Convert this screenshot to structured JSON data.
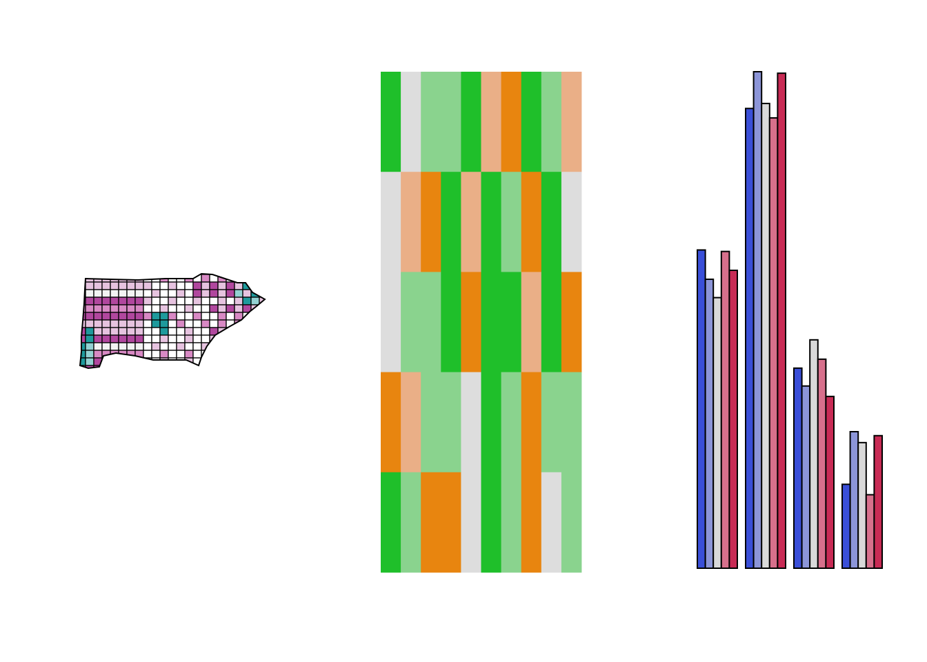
{
  "chart_data": [
    {
      "type": "map",
      "title": "",
      "region_fill_classes": [
        "#ffffff",
        "#f3f3f3",
        "#e6c3df",
        "#d889c4",
        "#b1479e",
        "#93d1d2",
        "#1e9a9c"
      ],
      "outline_color": "#000000"
    },
    {
      "type": "heatmap",
      "title": "",
      "xlabel": "",
      "ylabel": "",
      "grid": false,
      "color_scale": {
        "1": "#dddddd",
        "2": "#eaaf87",
        "3": "#e8850f",
        "4": "#1fbf2a",
        "5": "#8ad38e"
      },
      "n_cols": 10,
      "n_rows": 5,
      "values": [
        [
          4,
          1,
          5,
          5,
          4,
          2,
          3,
          4,
          5,
          2
        ],
        [
          1,
          2,
          3,
          4,
          2,
          4,
          5,
          3,
          4,
          1
        ],
        [
          1,
          5,
          5,
          4,
          3,
          4,
          4,
          2,
          4,
          3
        ],
        [
          3,
          2,
          5,
          5,
          1,
          4,
          5,
          3,
          5,
          5
        ],
        [
          4,
          5,
          3,
          3,
          1,
          4,
          5,
          3,
          1,
          5
        ]
      ]
    },
    {
      "type": "bar",
      "title": "",
      "xlabel": "",
      "ylabel": "",
      "grid": false,
      "ylim": [
        0,
        1
      ],
      "bar_outline": "#000000",
      "categories": [
        "",
        "",
        "",
        ""
      ],
      "series": [
        {
          "color": "#3a4fd8",
          "values": [
            0.641,
            0.926,
            0.403,
            0.169
          ]
        },
        {
          "color": "#8c95d8",
          "values": [
            0.582,
            1.0,
            0.367,
            0.275
          ]
        },
        {
          "color": "#d9d9d9",
          "values": [
            0.545,
            0.936,
            0.46,
            0.253
          ]
        },
        {
          "color": "#d7708c",
          "values": [
            0.638,
            0.907,
            0.421,
            0.148
          ]
        },
        {
          "color": "#c82b55",
          "values": [
            0.6,
            0.997,
            0.346,
            0.267
          ]
        }
      ]
    }
  ]
}
